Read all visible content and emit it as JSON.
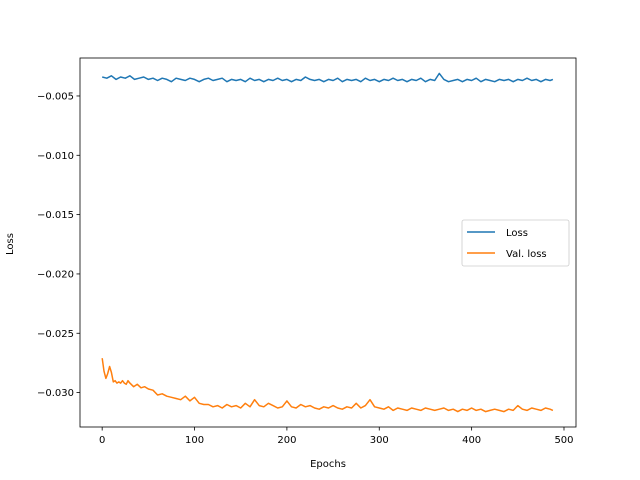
{
  "chart_data": {
    "type": "line",
    "title": "",
    "xlabel": "Epochs",
    "ylabel": "Loss",
    "xlim": [
      -24,
      513
    ],
    "ylim": [
      -0.0329,
      -0.0018
    ],
    "x_ticks": [
      0,
      100,
      200,
      300,
      400,
      500
    ],
    "y_ticks": [
      -0.03,
      -0.025,
      -0.02,
      -0.015,
      -0.01,
      -0.005
    ],
    "x_tick_labels": [
      "0",
      "100",
      "200",
      "300",
      "400",
      "500"
    ],
    "y_tick_labels": [
      "−0.030",
      "−0.025",
      "−0.020",
      "−0.015",
      "−0.010",
      "−0.005"
    ],
    "grid": false,
    "legend_position": "center-right",
    "series": [
      {
        "name": "Loss",
        "color": "#1f77b4",
        "x": [
          0,
          5,
          10,
          15,
          20,
          25,
          30,
          35,
          40,
          45,
          50,
          55,
          60,
          65,
          70,
          75,
          80,
          85,
          90,
          95,
          100,
          105,
          110,
          115,
          120,
          125,
          130,
          135,
          140,
          145,
          150,
          155,
          160,
          165,
          170,
          175,
          180,
          185,
          190,
          195,
          200,
          205,
          210,
          215,
          220,
          225,
          230,
          235,
          240,
          245,
          250,
          255,
          260,
          265,
          270,
          275,
          280,
          285,
          290,
          295,
          300,
          305,
          310,
          315,
          320,
          325,
          330,
          335,
          340,
          345,
          350,
          355,
          360,
          365,
          370,
          375,
          380,
          385,
          390,
          395,
          400,
          405,
          410,
          415,
          420,
          425,
          430,
          435,
          440,
          445,
          450,
          455,
          460,
          465,
          470,
          475,
          480,
          485,
          488
        ],
        "y": [
          -0.0034,
          -0.0035,
          -0.0033,
          -0.0036,
          -0.0034,
          -0.0035,
          -0.0033,
          -0.0036,
          -0.0035,
          -0.0034,
          -0.0036,
          -0.0035,
          -0.0037,
          -0.0035,
          -0.0036,
          -0.0038,
          -0.0035,
          -0.0036,
          -0.0037,
          -0.0035,
          -0.0036,
          -0.0038,
          -0.0036,
          -0.0035,
          -0.0037,
          -0.0036,
          -0.0035,
          -0.0038,
          -0.0036,
          -0.0037,
          -0.0036,
          -0.0038,
          -0.0035,
          -0.0037,
          -0.0036,
          -0.0038,
          -0.0036,
          -0.0037,
          -0.0035,
          -0.0037,
          -0.0036,
          -0.0038,
          -0.0036,
          -0.0037,
          -0.0034,
          -0.0036,
          -0.0037,
          -0.0036,
          -0.0038,
          -0.0036,
          -0.0037,
          -0.0035,
          -0.0038,
          -0.0036,
          -0.0037,
          -0.0036,
          -0.0038,
          -0.0035,
          -0.0037,
          -0.0036,
          -0.0038,
          -0.0036,
          -0.0037,
          -0.0035,
          -0.0037,
          -0.0036,
          -0.0038,
          -0.0036,
          -0.0037,
          -0.0035,
          -0.0038,
          -0.0036,
          -0.0037,
          -0.0031,
          -0.0036,
          -0.0038,
          -0.0037,
          -0.0036,
          -0.0038,
          -0.0036,
          -0.0037,
          -0.0035,
          -0.0038,
          -0.0036,
          -0.0037,
          -0.0038,
          -0.0036,
          -0.0037,
          -0.0036,
          -0.0038,
          -0.0036,
          -0.0037,
          -0.0035,
          -0.0037,
          -0.0036,
          -0.0038,
          -0.0036,
          -0.0037,
          -0.0036
        ]
      },
      {
        "name": "Val. loss",
        "color": "#ff7f0e",
        "x": [
          0,
          2,
          4,
          6,
          8,
          10,
          12,
          14,
          16,
          18,
          20,
          22,
          24,
          26,
          28,
          30,
          34,
          38,
          42,
          46,
          50,
          55,
          60,
          65,
          70,
          75,
          80,
          85,
          90,
          95,
          100,
          105,
          110,
          115,
          120,
          125,
          130,
          135,
          140,
          145,
          150,
          155,
          160,
          165,
          170,
          175,
          180,
          185,
          190,
          195,
          200,
          205,
          210,
          215,
          220,
          225,
          230,
          235,
          240,
          245,
          250,
          255,
          260,
          265,
          270,
          275,
          280,
          285,
          290,
          295,
          300,
          305,
          310,
          315,
          320,
          325,
          330,
          335,
          340,
          345,
          350,
          355,
          360,
          365,
          370,
          375,
          380,
          385,
          390,
          395,
          400,
          405,
          410,
          415,
          420,
          425,
          430,
          435,
          440,
          445,
          450,
          455,
          460,
          465,
          470,
          475,
          480,
          485,
          488
        ],
        "y": [
          -0.0271,
          -0.0282,
          -0.0288,
          -0.0284,
          -0.0278,
          -0.0283,
          -0.0291,
          -0.029,
          -0.0292,
          -0.0291,
          -0.0292,
          -0.029,
          -0.0292,
          -0.0293,
          -0.029,
          -0.0292,
          -0.0295,
          -0.0293,
          -0.0296,
          -0.0295,
          -0.0297,
          -0.0298,
          -0.0302,
          -0.0301,
          -0.0303,
          -0.0304,
          -0.0305,
          -0.0306,
          -0.0303,
          -0.0307,
          -0.0304,
          -0.0309,
          -0.031,
          -0.031,
          -0.0312,
          -0.0311,
          -0.0313,
          -0.031,
          -0.0312,
          -0.0311,
          -0.0313,
          -0.0309,
          -0.0312,
          -0.0306,
          -0.0311,
          -0.0312,
          -0.0309,
          -0.0311,
          -0.0313,
          -0.0312,
          -0.0307,
          -0.0312,
          -0.0313,
          -0.031,
          -0.0312,
          -0.0311,
          -0.0313,
          -0.0314,
          -0.0312,
          -0.0313,
          -0.0311,
          -0.0313,
          -0.0314,
          -0.0312,
          -0.0313,
          -0.0309,
          -0.0313,
          -0.0311,
          -0.0306,
          -0.0312,
          -0.0313,
          -0.0314,
          -0.0312,
          -0.0315,
          -0.0313,
          -0.0314,
          -0.0315,
          -0.0313,
          -0.0314,
          -0.0315,
          -0.0313,
          -0.0314,
          -0.0315,
          -0.0314,
          -0.0313,
          -0.0315,
          -0.0314,
          -0.0316,
          -0.0314,
          -0.0315,
          -0.0313,
          -0.0315,
          -0.0314,
          -0.0316,
          -0.0315,
          -0.0314,
          -0.0315,
          -0.0316,
          -0.0314,
          -0.0315,
          -0.0311,
          -0.0314,
          -0.0315,
          -0.0313,
          -0.0314,
          -0.0315,
          -0.0313,
          -0.0314,
          -0.0315
        ]
      }
    ]
  }
}
